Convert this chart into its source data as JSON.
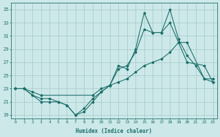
{
  "xlabel": "Humidex (Indice chaleur)",
  "xlim": [
    -0.5,
    23.5
  ],
  "ylim": [
    18.5,
    36.0
  ],
  "xticks": [
    0,
    1,
    2,
    3,
    4,
    5,
    6,
    7,
    8,
    9,
    10,
    11,
    12,
    13,
    14,
    15,
    16,
    17,
    18,
    19,
    20,
    21,
    22,
    23
  ],
  "yticks": [
    19,
    21,
    23,
    25,
    27,
    29,
    31,
    33,
    35
  ],
  "bg_color": "#cce8e8",
  "grid_color": "#aacccc",
  "line_color": "#1a6e6a",
  "line1_x": [
    0,
    1,
    2,
    3,
    4,
    5,
    6,
    7,
    8,
    9,
    10,
    11,
    12,
    13,
    14,
    15,
    16,
    17,
    18,
    19,
    20,
    21,
    22,
    23
  ],
  "line1_y": [
    23,
    23,
    22,
    21.5,
    21.5,
    21,
    20.5,
    19,
    20,
    21.5,
    22.5,
    23.5,
    26.5,
    26,
    29,
    34.5,
    31.5,
    31.5,
    35,
    30.5,
    28,
    26.5,
    24.5,
    24
  ],
  "line2_x": [
    0,
    1,
    2,
    3,
    4,
    5,
    6,
    7,
    8,
    9,
    10,
    11,
    12,
    13,
    14,
    15,
    16,
    17,
    18,
    19,
    20,
    22,
    23
  ],
  "line2_y": [
    23,
    23,
    22,
    21,
    21,
    21,
    20.5,
    19,
    19.5,
    21,
    22.5,
    23.5,
    26,
    26.5,
    28.5,
    32,
    31.5,
    31.5,
    33,
    30,
    27,
    26.5,
    24
  ],
  "line3_x": [
    0,
    1,
    2,
    3,
    9,
    10,
    11,
    12,
    13,
    14,
    15,
    16,
    17,
    18,
    19,
    20,
    22,
    23
  ],
  "line3_y": [
    23,
    23,
    22.5,
    22,
    22,
    23,
    23.5,
    24,
    24.5,
    25.5,
    26.5,
    27,
    27.5,
    28.5,
    30,
    30,
    24.5,
    24.5
  ],
  "figsize": [
    3.2,
    2.0
  ],
  "dpi": 100
}
